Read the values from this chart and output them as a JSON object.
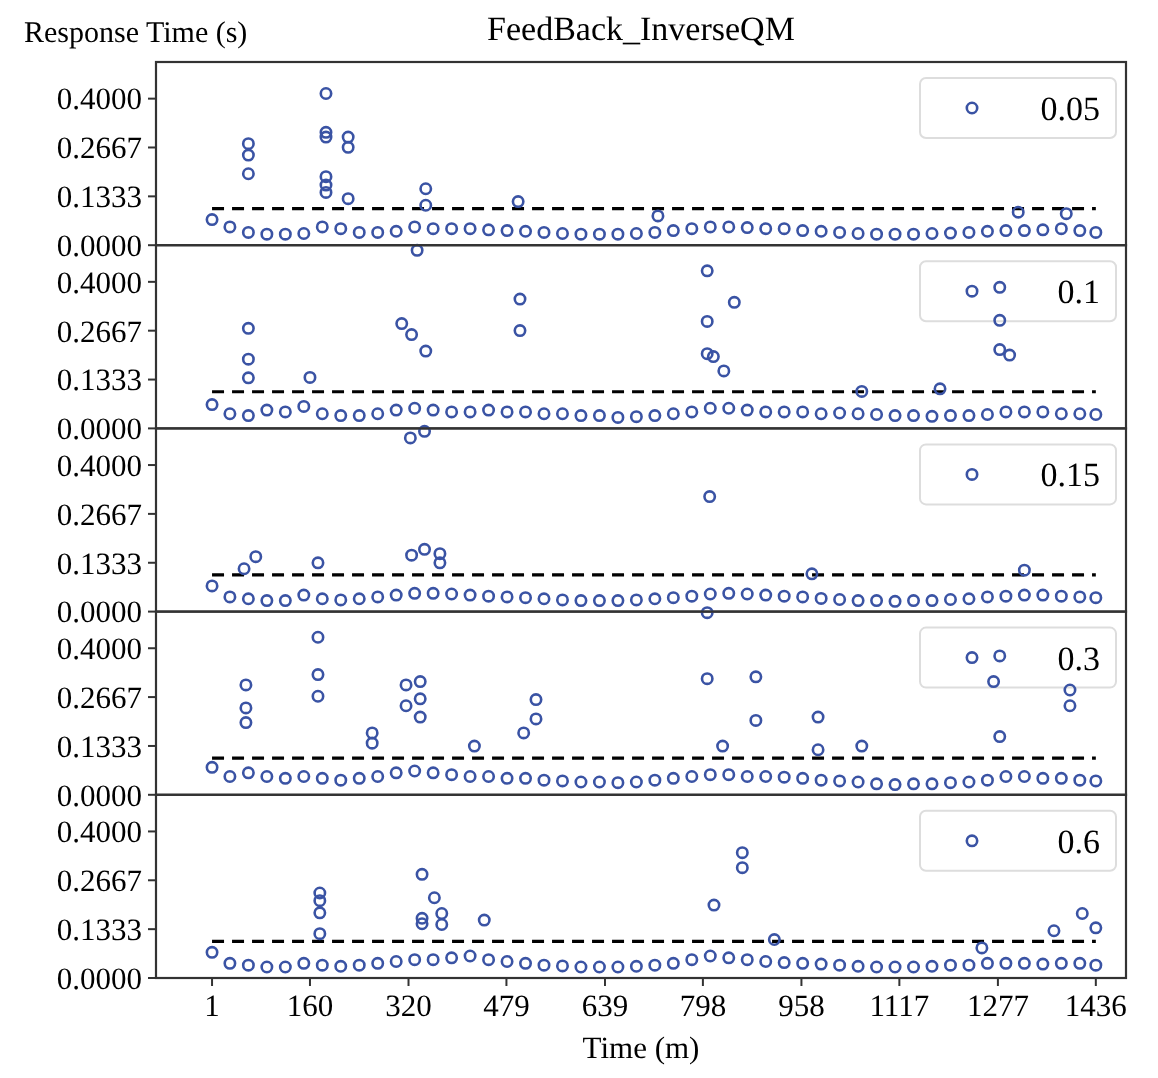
{
  "chart_data": [
    {
      "type": "scatter",
      "title": "FeedBack_InverseQM",
      "ylabel": "Response Time (s)",
      "xlim": [
        -90,
        1485
      ],
      "ylim": [
        0,
        0.5
      ],
      "yticks": [
        {
          "value": 0,
          "label": "0.0000"
        },
        {
          "value": 0.1333,
          "label": "0.1333"
        },
        {
          "value": 0.2667,
          "label": "0.2667"
        },
        {
          "value": 0.4,
          "label": "0.4000"
        }
      ],
      "tick_labels": "y",
      "legend": "top right",
      "marker": "circle",
      "ref_lines": [
        {
          "axis": "y",
          "value": 0.1,
          "color": "#000000",
          "line_style": "dashed"
        }
      ],
      "series": [
        {
          "name": "0.05",
          "color": "#3a53a4",
          "x": [
            1,
            30,
            60,
            90,
            120,
            150,
            180,
            210,
            240,
            270,
            300,
            330,
            360,
            390,
            420,
            450,
            480,
            510,
            540,
            570,
            600,
            630,
            660,
            690,
            720,
            750,
            780,
            810,
            840,
            870,
            900,
            930,
            960,
            990,
            1020,
            1050,
            1080,
            1110,
            1140,
            1170,
            1200,
            1230,
            1260,
            1290,
            1320,
            1350,
            1380,
            1410,
            1436,
            60,
            60,
            60,
            186,
            186,
            186,
            186,
            186,
            186,
            222,
            222,
            222,
            348,
            348,
            498,
            725,
            1310,
            1388
          ],
          "values": [
            0.07,
            0.05,
            0.035,
            0.03,
            0.03,
            0.032,
            0.05,
            0.045,
            0.035,
            0.035,
            0.038,
            0.05,
            0.045,
            0.045,
            0.045,
            0.042,
            0.04,
            0.038,
            0.035,
            0.032,
            0.03,
            0.03,
            0.03,
            0.032,
            0.035,
            0.04,
            0.045,
            0.05,
            0.05,
            0.048,
            0.045,
            0.045,
            0.04,
            0.038,
            0.035,
            0.032,
            0.03,
            0.03,
            0.03,
            0.032,
            0.033,
            0.035,
            0.038,
            0.04,
            0.04,
            0.042,
            0.045,
            0.04,
            0.035,
            0.277,
            0.246,
            0.195,
            0.414,
            0.308,
            0.295,
            0.187,
            0.164,
            0.144,
            0.295,
            0.267,
            0.127,
            0.154,
            0.109,
            0.119,
            0.08,
            0.09,
            0.086
          ]
        }
      ]
    },
    {
      "type": "scatter",
      "xlim": [
        -90,
        1485
      ],
      "ylim": [
        0,
        0.5
      ],
      "yticks": [
        {
          "value": 0,
          "label": "0.0000"
        },
        {
          "value": 0.1333,
          "label": "0.1333"
        },
        {
          "value": 0.2667,
          "label": "0.2667"
        },
        {
          "value": 0.4,
          "label": "0.4000"
        }
      ],
      "tick_labels": "y",
      "legend": "top right",
      "marker": "circle",
      "ref_lines": [
        {
          "axis": "y",
          "value": 0.1,
          "color": "#000000",
          "line_style": "dashed"
        }
      ],
      "series": [
        {
          "name": "0.1",
          "color": "#3a53a4",
          "x": [
            1,
            30,
            60,
            90,
            120,
            150,
            180,
            210,
            240,
            270,
            300,
            330,
            360,
            390,
            420,
            450,
            480,
            510,
            540,
            570,
            600,
            630,
            660,
            690,
            720,
            750,
            780,
            810,
            840,
            870,
            900,
            930,
            960,
            990,
            1020,
            1050,
            1080,
            1110,
            1140,
            1170,
            1200,
            1230,
            1260,
            1290,
            1320,
            1350,
            1380,
            1410,
            1436,
            60,
            60,
            60,
            160,
            309,
            325,
            348,
            334,
            501,
            501,
            805,
            805,
            805,
            815,
            849,
            832,
            1280,
            1280,
            1280,
            1296,
            1183,
            1056
          ],
          "values": [
            0.065,
            0.04,
            0.035,
            0.05,
            0.045,
            0.06,
            0.04,
            0.035,
            0.035,
            0.04,
            0.05,
            0.055,
            0.05,
            0.045,
            0.045,
            0.05,
            0.045,
            0.045,
            0.04,
            0.04,
            0.035,
            0.035,
            0.03,
            0.032,
            0.035,
            0.04,
            0.045,
            0.055,
            0.055,
            0.05,
            0.045,
            0.045,
            0.045,
            0.04,
            0.042,
            0.04,
            0.038,
            0.035,
            0.035,
            0.033,
            0.035,
            0.035,
            0.038,
            0.045,
            0.045,
            0.045,
            0.04,
            0.04,
            0.038,
            0.273,
            0.189,
            0.138,
            0.139,
            0.286,
            0.256,
            0.211,
            0.486,
            0.353,
            0.267,
            0.43,
            0.292,
            0.204,
            0.196,
            0.344,
            0.157,
            0.385,
            0.295,
            0.215,
            0.2,
            0.108,
            0.101
          ]
        }
      ]
    },
    {
      "type": "scatter",
      "xlim": [
        -90,
        1485
      ],
      "ylim": [
        0,
        0.5
      ],
      "yticks": [
        {
          "value": 0,
          "label": "0.0000"
        },
        {
          "value": 0.1333,
          "label": "0.1333"
        },
        {
          "value": 0.2667,
          "label": "0.2667"
        },
        {
          "value": 0.4,
          "label": "0.4000"
        }
      ],
      "tick_labels": "y",
      "legend": "top right",
      "marker": "circle",
      "ref_lines": [
        {
          "axis": "y",
          "value": 0.1,
          "color": "#000000",
          "line_style": "dashed"
        }
      ],
      "series": [
        {
          "name": "0.15",
          "color": "#3a53a4",
          "x": [
            1,
            30,
            60,
            90,
            120,
            150,
            180,
            210,
            240,
            270,
            300,
            330,
            360,
            390,
            420,
            450,
            480,
            510,
            540,
            570,
            600,
            630,
            660,
            690,
            720,
            750,
            780,
            810,
            840,
            870,
            900,
            930,
            960,
            990,
            1020,
            1050,
            1080,
            1110,
            1140,
            1170,
            1200,
            1230,
            1260,
            1290,
            1320,
            1350,
            1380,
            1410,
            1436,
            323,
            346,
            346,
            325,
            371,
            371,
            809,
            72,
            173,
            53,
            975,
            1320
          ],
          "values": [
            0.07,
            0.04,
            0.035,
            0.03,
            0.03,
            0.045,
            0.035,
            0.032,
            0.035,
            0.04,
            0.045,
            0.05,
            0.05,
            0.048,
            0.045,
            0.042,
            0.04,
            0.038,
            0.035,
            0.032,
            0.03,
            0.03,
            0.03,
            0.032,
            0.035,
            0.038,
            0.042,
            0.048,
            0.05,
            0.048,
            0.045,
            0.042,
            0.04,
            0.036,
            0.033,
            0.03,
            0.03,
            0.028,
            0.03,
            0.03,
            0.033,
            0.035,
            0.04,
            0.042,
            0.045,
            0.045,
            0.042,
            0.04,
            0.038,
            0.474,
            0.492,
            0.17,
            0.154,
            0.158,
            0.133,
            0.314,
            0.15,
            0.133,
            0.117,
            0.103,
            0.113
          ]
        }
      ]
    },
    {
      "type": "scatter",
      "xlim": [
        -90,
        1485
      ],
      "ylim": [
        0,
        0.5
      ],
      "yticks": [
        {
          "value": 0,
          "label": "0.0000"
        },
        {
          "value": 0.1333,
          "label": "0.1333"
        },
        {
          "value": 0.2667,
          "label": "0.2667"
        },
        {
          "value": 0.4,
          "label": "0.4000"
        }
      ],
      "tick_labels": "y",
      "legend": "top right",
      "marker": "circle",
      "ref_lines": [
        {
          "axis": "y",
          "value": 0.1,
          "color": "#000000",
          "line_style": "dashed"
        }
      ],
      "series": [
        {
          "name": "0.3",
          "color": "#3a53a4",
          "x": [
            1,
            30,
            60,
            90,
            120,
            150,
            180,
            210,
            240,
            270,
            300,
            330,
            360,
            390,
            420,
            450,
            480,
            510,
            540,
            570,
            600,
            630,
            660,
            690,
            720,
            750,
            780,
            810,
            840,
            870,
            900,
            930,
            960,
            990,
            1020,
            1050,
            1080,
            1110,
            1140,
            1170,
            1200,
            1230,
            1260,
            1290,
            1320,
            1350,
            1380,
            1410,
            1436,
            56,
            56,
            56,
            173,
            173,
            173,
            316,
            316,
            339,
            339,
            339,
            261,
            261,
            527,
            527,
            507,
            805,
            805,
            884,
            884,
            985,
            985,
            1056,
            1280,
            1270,
            1280,
            1394,
            1394,
            830,
            427
          ],
          "values": [
            0.075,
            0.05,
            0.06,
            0.05,
            0.045,
            0.05,
            0.045,
            0.04,
            0.045,
            0.05,
            0.06,
            0.065,
            0.06,
            0.055,
            0.05,
            0.05,
            0.045,
            0.045,
            0.04,
            0.038,
            0.035,
            0.035,
            0.033,
            0.035,
            0.04,
            0.045,
            0.05,
            0.055,
            0.055,
            0.05,
            0.05,
            0.048,
            0.045,
            0.04,
            0.038,
            0.035,
            0.03,
            0.028,
            0.03,
            0.03,
            0.033,
            0.035,
            0.04,
            0.05,
            0.05,
            0.045,
            0.045,
            0.04,
            0.038,
            0.3,
            0.237,
            0.197,
            0.43,
            0.328,
            0.269,
            0.3,
            0.243,
            0.309,
            0.262,
            0.212,
            0.169,
            0.141,
            0.26,
            0.207,
            0.169,
            0.497,
            0.317,
            0.322,
            0.203,
            0.212,
            0.123,
            0.133,
            0.379,
            0.309,
            0.159,
            0.286,
            0.243,
            0.133,
            0.133
          ]
        }
      ]
    },
    {
      "type": "scatter",
      "xlabel": "Time (m)",
      "xlim": [
        -90,
        1485
      ],
      "xticks": [
        1,
        160,
        320,
        479,
        639,
        798,
        958,
        1117,
        1277,
        1436
      ],
      "ylim": [
        0,
        0.5
      ],
      "yticks": [
        {
          "value": 0,
          "label": "0.0000"
        },
        {
          "value": 0.1333,
          "label": "0.1333"
        },
        {
          "value": 0.2667,
          "label": "0.2667"
        },
        {
          "value": 0.4,
          "label": "0.4000"
        }
      ],
      "legend": "top right",
      "marker": "circle",
      "ref_lines": [
        {
          "axis": "y",
          "value": 0.1,
          "color": "#000000",
          "line_style": "dashed"
        }
      ],
      "series": [
        {
          "name": "0.6",
          "color": "#3a53a4",
          "x": [
            1,
            30,
            60,
            90,
            120,
            150,
            180,
            210,
            240,
            270,
            300,
            330,
            360,
            390,
            420,
            450,
            480,
            510,
            540,
            570,
            600,
            630,
            660,
            690,
            720,
            750,
            780,
            810,
            840,
            870,
            900,
            930,
            960,
            990,
            1020,
            1050,
            1080,
            1110,
            1140,
            1170,
            1200,
            1230,
            1260,
            1290,
            1320,
            1350,
            1380,
            1410,
            1436,
            176,
            176,
            176,
            176,
            342,
            342,
            342,
            362,
            374,
            374,
            443,
            816,
            862,
            862,
            1368,
            1414,
            1436,
            914,
            1251
          ],
          "values": [
            0.07,
            0.04,
            0.035,
            0.03,
            0.03,
            0.04,
            0.035,
            0.032,
            0.035,
            0.04,
            0.045,
            0.05,
            0.05,
            0.055,
            0.06,
            0.05,
            0.045,
            0.04,
            0.035,
            0.033,
            0.03,
            0.03,
            0.03,
            0.032,
            0.035,
            0.04,
            0.05,
            0.06,
            0.055,
            0.05,
            0.045,
            0.042,
            0.04,
            0.038,
            0.035,
            0.032,
            0.03,
            0.03,
            0.03,
            0.032,
            0.035,
            0.035,
            0.04,
            0.04,
            0.04,
            0.038,
            0.04,
            0.04,
            0.035,
            0.232,
            0.211,
            0.178,
            0.121,
            0.283,
            0.163,
            0.148,
            0.219,
            0.176,
            0.146,
            0.158,
            0.199,
            0.342,
            0.301,
            0.129,
            0.176,
            0.137,
            0.105,
            0.082
          ]
        }
      ]
    }
  ]
}
